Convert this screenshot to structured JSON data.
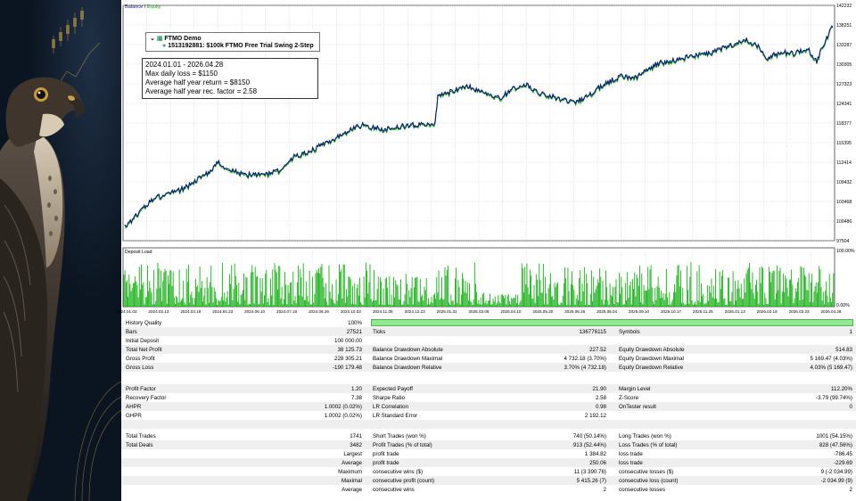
{
  "balance_chart": {
    "legend_balance": "Balance",
    "legend_sep": " / ",
    "legend_equity": "Equity",
    "y_ticks": [
      "142232",
      "138251",
      "133287",
      "130305",
      "127323",
      "124341",
      "118377",
      "115395",
      "112414",
      "109432",
      "103468",
      "100486",
      "97504"
    ],
    "colors": {
      "balance": "#0a1e78",
      "equity": "#19a019",
      "grid": "#c8c8c8"
    }
  },
  "account": {
    "name": "FTMO Demo",
    "detail": "1513192881: $100k FTMO Free Trial Swing 2-Step"
  },
  "info": {
    "period": "2024.01.01 - 2026.04.28",
    "max_daily_loss": "Max daily loss = $1150",
    "avg_return": "Average half year return = $8150",
    "avg_rec_factor": "Average half year rec. factor = 2.58"
  },
  "load_chart": {
    "title": "Deposit Load",
    "y_top": "100.00%",
    "y_bottom": "0.00%",
    "x_labels": [
      "2024.01.03",
      "2024.02.13",
      "2024.03.18",
      "2024.04.23",
      "2024.06.10",
      "2024.07.18",
      "2024.08.26",
      "2024.10.03",
      "2024.11.06",
      "2024.12.23",
      "2025.01.31",
      "2025.03.06",
      "2025.04.10",
      "2025.05.20",
      "2025.06.26",
      "2025.08.04",
      "2025.09.10",
      "2025.10.17",
      "2025.11.25",
      "2026.01.13",
      "2026.02.18",
      "2026.03.23",
      "2026.04.28"
    ],
    "color": "#17b117"
  },
  "stats": {
    "history_quality_label": "History Quality",
    "history_quality_value": "100%",
    "bars_label": "Bars",
    "bars_value": "27521",
    "ticks_label": "Ticks",
    "ticks_value": "136776115",
    "symbols_label": "Symbols",
    "symbols_value": "1",
    "initial_deposit_label": "Initial Deposit",
    "initial_deposit_value": "100 000.00",
    "total_net_profit_label": "Total Net Profit",
    "total_net_profit_value": "38 125.73",
    "bal_dd_abs_label": "Balance Drawdown Absolute",
    "bal_dd_abs_value": "227.52",
    "eq_dd_abs_label": "Equity Drawdown Absolute",
    "eq_dd_abs_value": "514.83",
    "gross_profit_label": "Gross Profit",
    "gross_profit_value": "228 305.21",
    "bal_dd_max_label": "Balance Drawdown Maximal",
    "bal_dd_max_value": "4 732.18 (3.70%)",
    "eq_dd_max_label": "Equity Drawdown Maximal",
    "eq_dd_max_value": "5 169.47 (4.03%)",
    "gross_loss_label": "Gross Loss",
    "gross_loss_value": "-190 179.48",
    "bal_dd_rel_label": "Balance Drawdown Relative",
    "bal_dd_rel_value": "3.70% (4 732.18)",
    "eq_dd_rel_label": "Equity Drawdown Relative",
    "eq_dd_rel_value": "4.03% (5 169.47)",
    "profit_factor_label": "Profit Factor",
    "profit_factor_value": "1.20",
    "expected_payoff_label": "Expected Payoff",
    "expected_payoff_value": "21.90",
    "margin_level_label": "Margin Level",
    "margin_level_value": "112.20%",
    "recovery_factor_label": "Recovery Factor",
    "recovery_factor_value": "7.38",
    "sharpe_label": "Sharpe Ratio",
    "sharpe_value": "2.58",
    "zscore_label": "Z-Score",
    "zscore_value": "-3.79 (99.74%)",
    "ahpr_label": "AHPR",
    "ahpr_value": "1.0002 (0.02%)",
    "lr_corr_label": "LR Correlation",
    "lr_corr_value": "0.98",
    "ontester_label": "OnTester result",
    "ontester_value": "0",
    "ghpr_label": "GHPR",
    "ghpr_value": "1.0002 (0.02%)",
    "lr_err_label": "LR Standard Error",
    "lr_err_value": "2 192.12",
    "total_trades_label": "Total Trades",
    "total_trades_value": "1741",
    "short_trades_label": "Short Trades (won %)",
    "short_trades_value": "740 (50.14%)",
    "long_trades_label": "Long Trades (won %)",
    "long_trades_value": "1001 (54.15%)",
    "total_deals_label": "Total Deals",
    "total_deals_value": "3482",
    "profit_trades_label": "Profit Trades (% of total)",
    "profit_trades_value": "913 (52.44%)",
    "loss_trades_label": "Loss Trades (% of total)",
    "loss_trades_value": "828 (47.56%)",
    "largest_label": "Largest",
    "largest_profit_label": "profit trade",
    "largest_profit_value": "1 384.82",
    "largest_loss_label": "loss trade",
    "largest_loss_value": "-786.45",
    "average_label": "Average",
    "average_profit_label": "profit trade",
    "average_profit_value": "250.06",
    "average_loss_label": "loss trade",
    "average_loss_value": "-229.69",
    "maximum_label": "Maximum",
    "max_cons_wins_label": "consecutive wins ($)",
    "max_cons_wins_value": "11 (3 390.76)",
    "max_cons_losses_label": "consecutive losses ($)",
    "max_cons_losses_value": "9 (-2 034.99)",
    "maximal_label": "Maximal",
    "maximal_profit_label": "consecutive profit (count)",
    "maximal_profit_value": "5 415.26 (7)",
    "maximal_loss_label": "consecutive loss (count)",
    "maximal_loss_value": "-2 034.99 (9)",
    "average2_label": "Average",
    "avg_cons_wins_label": "consecutive wins",
    "avg_cons_wins_value": "2",
    "avg_cons_losses_label": "consecutive losses",
    "avg_cons_losses_value": "2"
  }
}
